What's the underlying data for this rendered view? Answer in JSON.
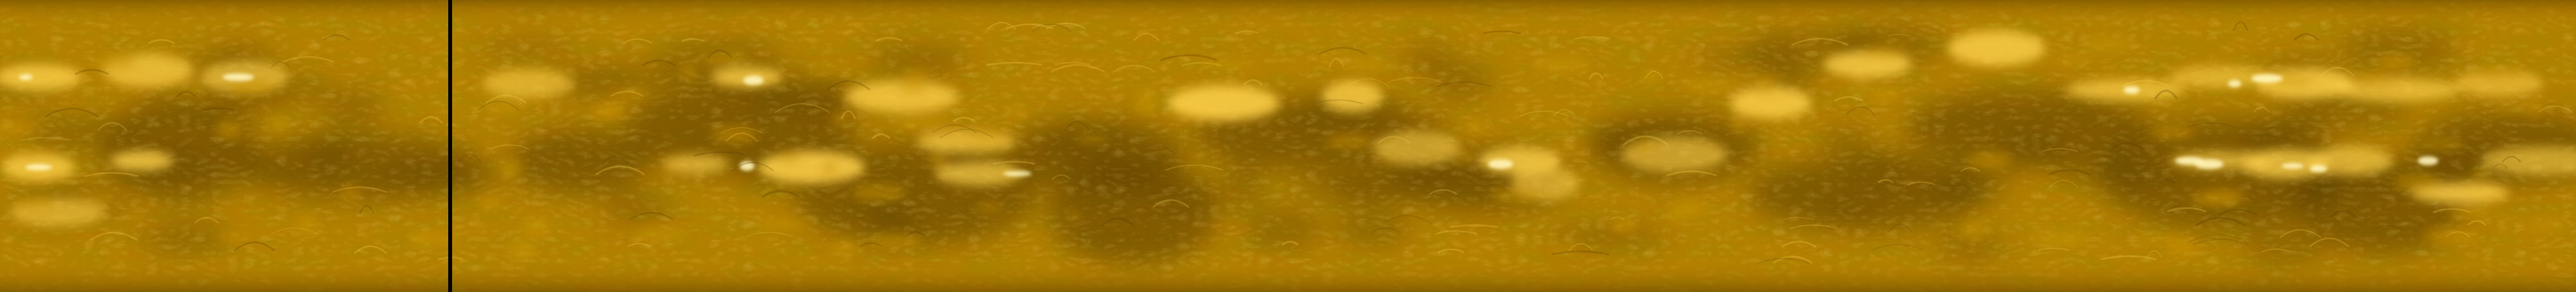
{
  "image": {
    "colors": {
      "base": "#b07c00",
      "dark": "#5a3c00",
      "mid": "#c99400",
      "bright": "#ffd24a",
      "highlight": "#fff4b8",
      "edge": "#8a6000",
      "gap": "#000000"
    }
  }
}
